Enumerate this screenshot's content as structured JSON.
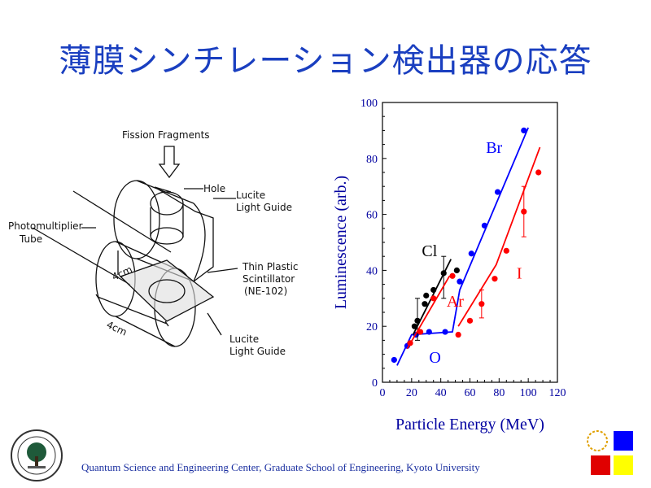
{
  "title": "薄膜シンチレーション検出器の応答",
  "footer": "Quantum Science and Engineering Center, Graduate School of Engineering, Kyoto University",
  "diagram": {
    "fission_fragments": "Fission Fragments",
    "hole": "Hole",
    "photomultiplier": "Photomultiplier",
    "tube": "Tube",
    "lucite_top_1": "Lucite",
    "lucite_top_2": "Light Guide",
    "thin_plastic_1": "Thin Plastic",
    "thin_plastic_2": "Scintillator",
    "thin_plastic_3": "(NE-102)",
    "lucite_bottom_1": "Lucite",
    "lucite_bottom_2": "Light Guide",
    "dim_1": "4cm",
    "dim_2": "4cm"
  },
  "colors": {
    "title": "#1a3fc0",
    "axis": "#0000a0",
    "br": "#0000ff",
    "i": "#ff0000",
    "cl": "#000000"
  },
  "chart_data": {
    "type": "scatter",
    "xlabel": "Particle Energy (MeV)",
    "ylabel": "Luminescence (arb.)",
    "xlim": [
      0,
      120
    ],
    "ylim": [
      0,
      100
    ],
    "xticks": [
      0,
      20,
      40,
      60,
      80,
      100,
      120
    ],
    "yticks": [
      0,
      20,
      40,
      60,
      80,
      100
    ],
    "series": [
      {
        "name": "Br",
        "color": "#0000ff",
        "points": [
          [
            8,
            8
          ],
          [
            17,
            13
          ],
          [
            23,
            17
          ],
          [
            32,
            18
          ],
          [
            43,
            18
          ],
          [
            53,
            36
          ],
          [
            61,
            46
          ],
          [
            70,
            56
          ],
          [
            79,
            68
          ],
          [
            97,
            90
          ]
        ],
        "line": [
          [
            10,
            6
          ],
          [
            20,
            17
          ],
          [
            48,
            18
          ],
          [
            53,
            33
          ],
          [
            100,
            91
          ]
        ]
      },
      {
        "name": "I",
        "color": "#ff0000",
        "points": [
          [
            52,
            17
          ],
          [
            60,
            22
          ],
          [
            68,
            28
          ],
          [
            77,
            37
          ],
          [
            85,
            47
          ],
          [
            97,
            61
          ],
          [
            107,
            75
          ]
        ],
        "line": [
          [
            52,
            20
          ],
          [
            78,
            42
          ],
          [
            108,
            84
          ]
        ],
        "errors": [
          [
            68,
            23,
            33
          ],
          [
            97,
            52,
            70
          ]
        ]
      },
      {
        "name": "Cl",
        "color": "#000000",
        "points": [
          [
            22,
            20
          ],
          [
            24,
            22
          ],
          [
            29,
            28
          ],
          [
            30,
            31
          ],
          [
            35,
            33
          ],
          [
            42,
            39
          ],
          [
            51,
            40
          ]
        ],
        "line": [
          [
            21,
            17
          ],
          [
            47,
            44
          ]
        ],
        "errors": [
          [
            24,
            15,
            30
          ],
          [
            42,
            30,
            45
          ]
        ]
      },
      {
        "name": "Ar",
        "color": "#ff0000",
        "points": [
          [
            19,
            14
          ],
          [
            26,
            18
          ],
          [
            35,
            30
          ],
          [
            48,
            38
          ]
        ],
        "line": [
          [
            17,
            12
          ],
          [
            46,
            38
          ]
        ]
      },
      {
        "name": "O",
        "color": "#0000ff",
        "points": [],
        "line": []
      }
    ],
    "labels": [
      {
        "text": "Br",
        "x": 71,
        "y": 82,
        "color": "#0000ff"
      },
      {
        "text": "I",
        "x": 92,
        "y": 37,
        "color": "#ff0000"
      },
      {
        "text": "Cl",
        "x": 27,
        "y": 45,
        "color": "#000000"
      },
      {
        "text": "Ar",
        "x": 44,
        "y": 27,
        "color": "#ff0000"
      },
      {
        "text": "O",
        "x": 32,
        "y": 7,
        "color": "#0000ff"
      }
    ]
  }
}
